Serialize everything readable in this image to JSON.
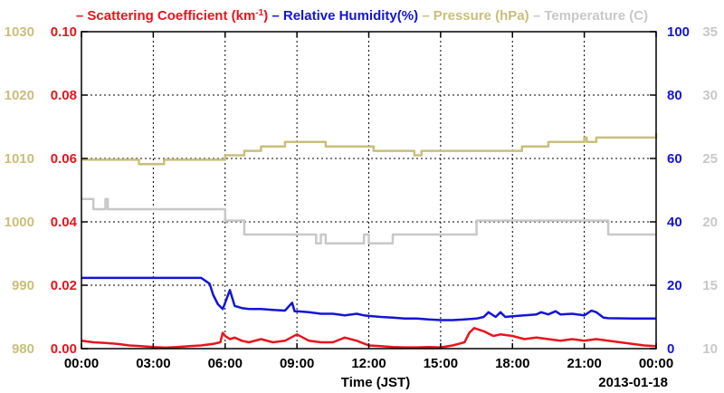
{
  "chart_data": {
    "type": "line",
    "title_parts": [
      {
        "text": "– Scattering Coefficient (km",
        "color": "#e8141c"
      },
      {
        "text": "-1",
        "color": "#e8141c",
        "sup": true
      },
      {
        "text": ") ",
        "color": "#e8141c"
      },
      {
        "text": "– Relative Humidity(%) ",
        "color": "#1414d8"
      },
      {
        "text": "– Pressure (hPa) ",
        "color": "#c9bf7a"
      },
      {
        "text": "– Temperature (C)",
        "color": "#c8c8c8"
      }
    ],
    "xlabel": "Time (JST)",
    "date_label": "2013-01-18",
    "x_ticks": [
      "00:00",
      "03:00",
      "06:00",
      "09:00",
      "12:00",
      "15:00",
      "18:00",
      "21:00",
      "00:00"
    ],
    "xlim": [
      0,
      24
    ],
    "grid": true,
    "axes": {
      "pressure": {
        "side": "left-outer",
        "color": "#c9bf7a",
        "range": [
          980,
          1030
        ],
        "ticks": [
          "980",
          "990",
          "1000",
          "1010",
          "1020",
          "1030"
        ]
      },
      "scattering": {
        "side": "left-inner",
        "color": "#e8141c",
        "range": [
          0,
          0.1
        ],
        "ticks": [
          "0.00",
          "0.02",
          "0.04",
          "0.06",
          "0.08",
          "0.10"
        ]
      },
      "humidity": {
        "side": "right-inner",
        "color": "#1414d8",
        "range": [
          0,
          100
        ],
        "ticks": [
          "0",
          "20",
          "40",
          "60",
          "80",
          "100"
        ]
      },
      "temperature": {
        "side": "right-outer",
        "color": "#c8c8c8",
        "range": [
          10,
          35
        ],
        "ticks": [
          "10",
          "15",
          "20",
          "25",
          "30",
          "35"
        ]
      }
    },
    "series": [
      {
        "name": "Pressure (hPa)",
        "axis": "pressure",
        "color": "#c9bf7a",
        "step": true,
        "x": [
          0,
          2.0,
          2.4,
          3.3,
          3.45,
          3.6,
          6.0,
          6.8,
          7.5,
          8.5,
          10.2,
          11.8,
          12.2,
          12.8,
          13.5,
          13.9,
          14.2,
          14.8,
          16.5,
          18.4,
          19.5,
          21.0,
          21.1,
          21.5,
          24.0
        ],
        "y": [
          1009.8,
          1009.8,
          1009.1,
          1009.1,
          1009.8,
          1009.8,
          1010.5,
          1011.2,
          1011.9,
          1012.6,
          1011.9,
          1011.9,
          1011.2,
          1011.2,
          1011.2,
          1010.5,
          1011.2,
          1011.2,
          1011.2,
          1011.9,
          1012.6,
          1013.3,
          1012.6,
          1013.3,
          1014.0
        ]
      },
      {
        "name": "Temperature (C)",
        "axis": "temperature",
        "color": "#c8c8c8",
        "step": true,
        "x": [
          0,
          0.5,
          0.9,
          1.0,
          1.1,
          6.0,
          6.8,
          9.8,
          10.0,
          10.2,
          11.0,
          11.8,
          12.0,
          12.2,
          13.0,
          13.5,
          16.5,
          16.6,
          21.0,
          22.0,
          24.0
        ],
        "y": [
          21.8,
          21.0,
          21.0,
          21.8,
          21.0,
          20.1,
          19.0,
          18.3,
          19.0,
          18.3,
          18.3,
          19.0,
          18.3,
          18.3,
          19.0,
          19.0,
          20.1,
          20.1,
          20.1,
          19.0,
          19.0
        ]
      },
      {
        "name": "Relative Humidity(%)",
        "axis": "humidity",
        "color": "#1414d8",
        "step": false,
        "x": [
          0,
          2,
          4,
          5.0,
          5.35,
          5.5,
          5.7,
          5.9,
          6.0,
          6.2,
          6.4,
          6.7,
          7.0,
          7.5,
          8.0,
          8.5,
          8.8,
          8.9,
          9.0,
          9.5,
          10.0,
          10.5,
          11.0,
          11.5,
          11.8,
          12.0,
          12.5,
          13.0,
          13.5,
          14.0,
          14.5,
          15.0,
          15.5,
          16.0,
          16.5,
          16.8,
          17.0,
          17.3,
          17.5,
          17.7,
          18.0,
          18.5,
          19.0,
          19.2,
          19.5,
          19.8,
          20.0,
          20.5,
          21.0,
          21.3,
          21.5,
          21.8,
          22.0,
          23.0,
          24.0
        ],
        "y": [
          22.3,
          22.3,
          22.3,
          22.3,
          20.5,
          17.0,
          14.0,
          12.5,
          14.5,
          18.5,
          13.5,
          12.8,
          12.5,
          12.5,
          12.2,
          12.0,
          14.5,
          11.8,
          11.8,
          11.5,
          11.0,
          11.0,
          10.5,
          11.0,
          10.5,
          10.3,
          10.0,
          9.8,
          9.5,
          9.5,
          9.2,
          9.0,
          9.0,
          9.2,
          9.5,
          10.0,
          11.5,
          10.0,
          11.5,
          10.0,
          10.2,
          10.5,
          10.8,
          11.5,
          10.8,
          11.8,
          10.8,
          11.0,
          10.5,
          12.0,
          11.5,
          9.8,
          9.6,
          9.5,
          9.5
        ]
      },
      {
        "name": "Scattering Coefficient (km-1)",
        "axis": "scattering",
        "color": "#e8141c",
        "step": false,
        "x": [
          0,
          0.5,
          1.0,
          1.5,
          2.0,
          2.5,
          3.0,
          3.5,
          4.0,
          4.5,
          5.0,
          5.5,
          5.8,
          5.9,
          6.0,
          6.2,
          6.4,
          6.7,
          7.0,
          7.5,
          8.0,
          8.5,
          9.0,
          9.5,
          10.0,
          10.5,
          11.0,
          11.5,
          12.0,
          12.5,
          13.0,
          13.5,
          14.0,
          14.5,
          15.0,
          15.5,
          16.0,
          16.2,
          16.4,
          16.8,
          17.2,
          17.5,
          18.0,
          18.5,
          19.0,
          19.5,
          20.0,
          20.5,
          21.0,
          21.5,
          22.0,
          22.5,
          23.0,
          23.5,
          24.0
        ],
        "y": [
          0.0025,
          0.002,
          0.0018,
          0.0015,
          0.001,
          0.0008,
          0.0005,
          0.0003,
          0.0005,
          0.0008,
          0.001,
          0.0015,
          0.002,
          0.005,
          0.004,
          0.003,
          0.0035,
          0.0025,
          0.002,
          0.003,
          0.002,
          0.0025,
          0.0045,
          0.0025,
          0.002,
          0.002,
          0.0035,
          0.0025,
          0.001,
          0.0008,
          0.0005,
          0.0004,
          0.0004,
          0.0005,
          0.0004,
          0.001,
          0.002,
          0.005,
          0.0065,
          0.0055,
          0.004,
          0.0045,
          0.004,
          0.003,
          0.0035,
          0.003,
          0.0025,
          0.003,
          0.0025,
          0.003,
          0.0025,
          0.002,
          0.0015,
          0.001,
          0.0008
        ]
      }
    ]
  }
}
